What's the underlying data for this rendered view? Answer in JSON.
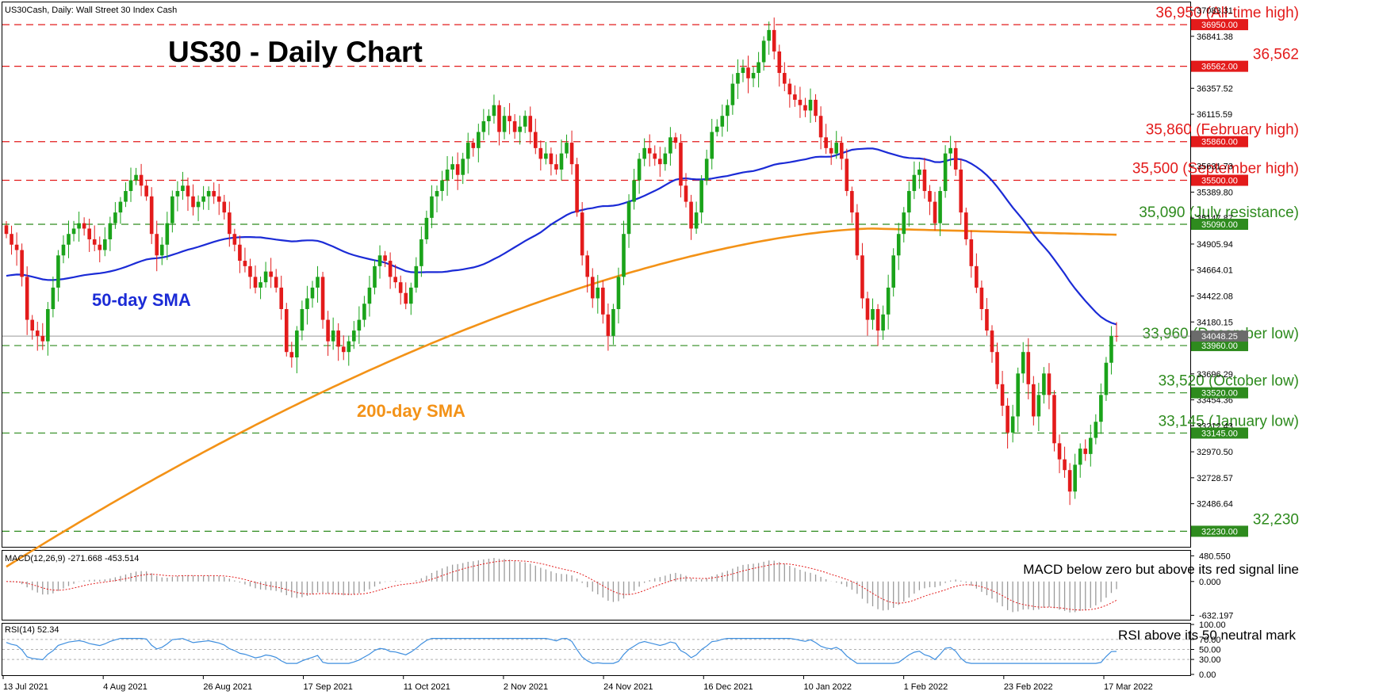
{
  "window": {
    "symbol_info": "US30Cash, Daily:  Wall Street 30 Index Cash"
  },
  "chart_title": "US30 - Daily Chart",
  "colors": {
    "bull": "#1aa31a",
    "bear": "#e31b1b",
    "sma50": "#1b2bd6",
    "sma200": "#f39217",
    "resistance": "#e31b1b",
    "support": "#2e8b1e",
    "macd_hist": "#9a9a9a",
    "macd_signal": "#e31b1b",
    "rsi": "#3f8fdf",
    "current_price_box": "#6b6b6b"
  },
  "chart_data": [
    {
      "type": "candlestick",
      "title": "US30 - Daily Chart",
      "ylim": [
        32100,
        37150
      ],
      "price_axis_ticks": [
        {
          "value": 37083.31,
          "label": "37083.31"
        },
        {
          "value": 36841.38,
          "label": "36841.38"
        },
        {
          "value": 36357.52,
          "label": "36357.52"
        },
        {
          "value": 36115.59,
          "label": "36115.59"
        },
        {
          "value": 35631.73,
          "label": "35631.73"
        },
        {
          "value": 35389.8,
          "label": "35389.80"
        },
        {
          "value": 35147.87,
          "label": "35147.87"
        },
        {
          "value": 34905.94,
          "label": "34905.94"
        },
        {
          "value": 34664.01,
          "label": "34664.01"
        },
        {
          "value": 34422.08,
          "label": "34422.08"
        },
        {
          "value": 34180.15,
          "label": "34180.15"
        },
        {
          "value": 33696.29,
          "label": "33696.29"
        },
        {
          "value": 33454.36,
          "label": "33454.36"
        },
        {
          "value": 33212.43,
          "label": "33212.43"
        },
        {
          "value": 32970.5,
          "label": "32970.50"
        },
        {
          "value": 32728.57,
          "label": "32728.57"
        },
        {
          "value": 32486.64,
          "label": "32486.64"
        }
      ],
      "x_tick_labels": [
        "13 Jul 2021",
        "4 Aug 2021",
        "26 Aug 2021",
        "17 Sep 2021",
        "11 Oct 2021",
        "2 Nov 2021",
        "24 Nov 2021",
        "16 Dec 2021",
        "10 Jan 2022",
        "1 Feb 2022",
        "23 Feb 2022",
        "17 Mar 2022"
      ],
      "levels": [
        {
          "value": 36950,
          "kind": "resistance",
          "label": "36,950 (All-time high)",
          "box": "36950.00"
        },
        {
          "value": 36562,
          "kind": "resistance",
          "label": "36,562",
          "box": "36562.00"
        },
        {
          "value": 35860,
          "kind": "resistance",
          "label": "35,860 (February high)",
          "box": "35860.00"
        },
        {
          "value": 35500,
          "kind": "resistance",
          "label": "35,500 (September high)",
          "box": "35500.00"
        },
        {
          "value": 35090,
          "kind": "support",
          "label": "35,090 (July resistance)",
          "box": "35090.00"
        },
        {
          "value": 33960,
          "kind": "support",
          "label": "33,960 (December low)",
          "box": "33960.00"
        },
        {
          "value": 33520,
          "kind": "support",
          "label": "33,520 (October low)",
          "box": "33520.00"
        },
        {
          "value": 33145,
          "kind": "support",
          "label": "33,145 (January low)",
          "box": "33145.00"
        },
        {
          "value": 32230,
          "kind": "support",
          "label": "32,230",
          "box": "32230.00"
        }
      ],
      "current_price": {
        "value": 34048.25,
        "label": "34048.25"
      },
      "annotations": {
        "sma50": "50-day SMA",
        "sma200": "200-day SMA"
      },
      "closes": [
        35000,
        34900,
        34850,
        34600,
        34200,
        34100,
        34050,
        34000,
        34300,
        34500,
        34800,
        34900,
        35000,
        35050,
        35100,
        35050,
        34950,
        34900,
        34850,
        34950,
        35100,
        35200,
        35300,
        35400,
        35500,
        35550,
        35450,
        35350,
        35000,
        34800,
        34900,
        35100,
        35350,
        35400,
        35450,
        35350,
        35250,
        35300,
        35350,
        35400,
        35350,
        35300,
        35200,
        35000,
        34900,
        34750,
        34700,
        34600,
        34500,
        34550,
        34650,
        34600,
        34500,
        34300,
        33900,
        33850,
        34100,
        34300,
        34400,
        34500,
        34600,
        34200,
        34000,
        34100,
        33950,
        33900,
        34000,
        34100,
        34200,
        34350,
        34500,
        34700,
        34800,
        34750,
        34600,
        34550,
        34450,
        34350,
        34500,
        34700,
        34950,
        35150,
        35350,
        35400,
        35500,
        35600,
        35650,
        35550,
        35700,
        35850,
        35800,
        35950,
        36050,
        36100,
        36200,
        35950,
        36100,
        36050,
        35950,
        36000,
        36100,
        35950,
        35800,
        35700,
        35750,
        35650,
        35600,
        35750,
        35850,
        35650,
        35200,
        34800,
        34600,
        34400,
        34500,
        34250,
        34050,
        34300,
        34600,
        35000,
        35300,
        35500,
        35700,
        35800,
        35750,
        35700,
        35650,
        35750,
        35900,
        35850,
        35450,
        35300,
        35050,
        35200,
        35500,
        35700,
        35950,
        36000,
        36100,
        36200,
        36400,
        36500,
        36550,
        36450,
        36500,
        36600,
        36800,
        36900,
        36700,
        36500,
        36400,
        36300,
        36250,
        36200,
        36150,
        36250,
        36100,
        35900,
        35800,
        35750,
        35850,
        35700,
        35400,
        35200,
        34800,
        34400,
        34200,
        34300,
        34100,
        34250,
        34500,
        34800,
        35000,
        35200,
        35400,
        35550,
        35600,
        35400,
        35300,
        35100,
        35400,
        35750,
        35800,
        35600,
        35200,
        34950,
        34700,
        34500,
        34300,
        34100,
        33900,
        33600,
        33400,
        33150,
        33300,
        33700,
        33900,
        33600,
        33300,
        33500,
        33700,
        33500,
        33050,
        32900,
        32800,
        32600,
        32850,
        33000,
        32950,
        33100,
        33250,
        33500,
        33800,
        34050,
        34048
      ]
    },
    {
      "type": "line",
      "title": "MACD(12,26,9) -271.668 -453.514",
      "axis_labels": [
        "480.550",
        "0.000",
        "-632.197"
      ],
      "ylim": [
        -700,
        560
      ],
      "annotation": "MACD below zero but above its red signal line"
    },
    {
      "type": "line",
      "title": "RSI(14) 52.34",
      "axis_labels": [
        "100.00",
        "70.00",
        "50.00",
        "30.00",
        "0.00"
      ],
      "ylim": [
        0,
        100
      ],
      "levels": [
        70,
        50,
        30
      ],
      "annotation": "RSI above its 50 neutral mark"
    }
  ]
}
